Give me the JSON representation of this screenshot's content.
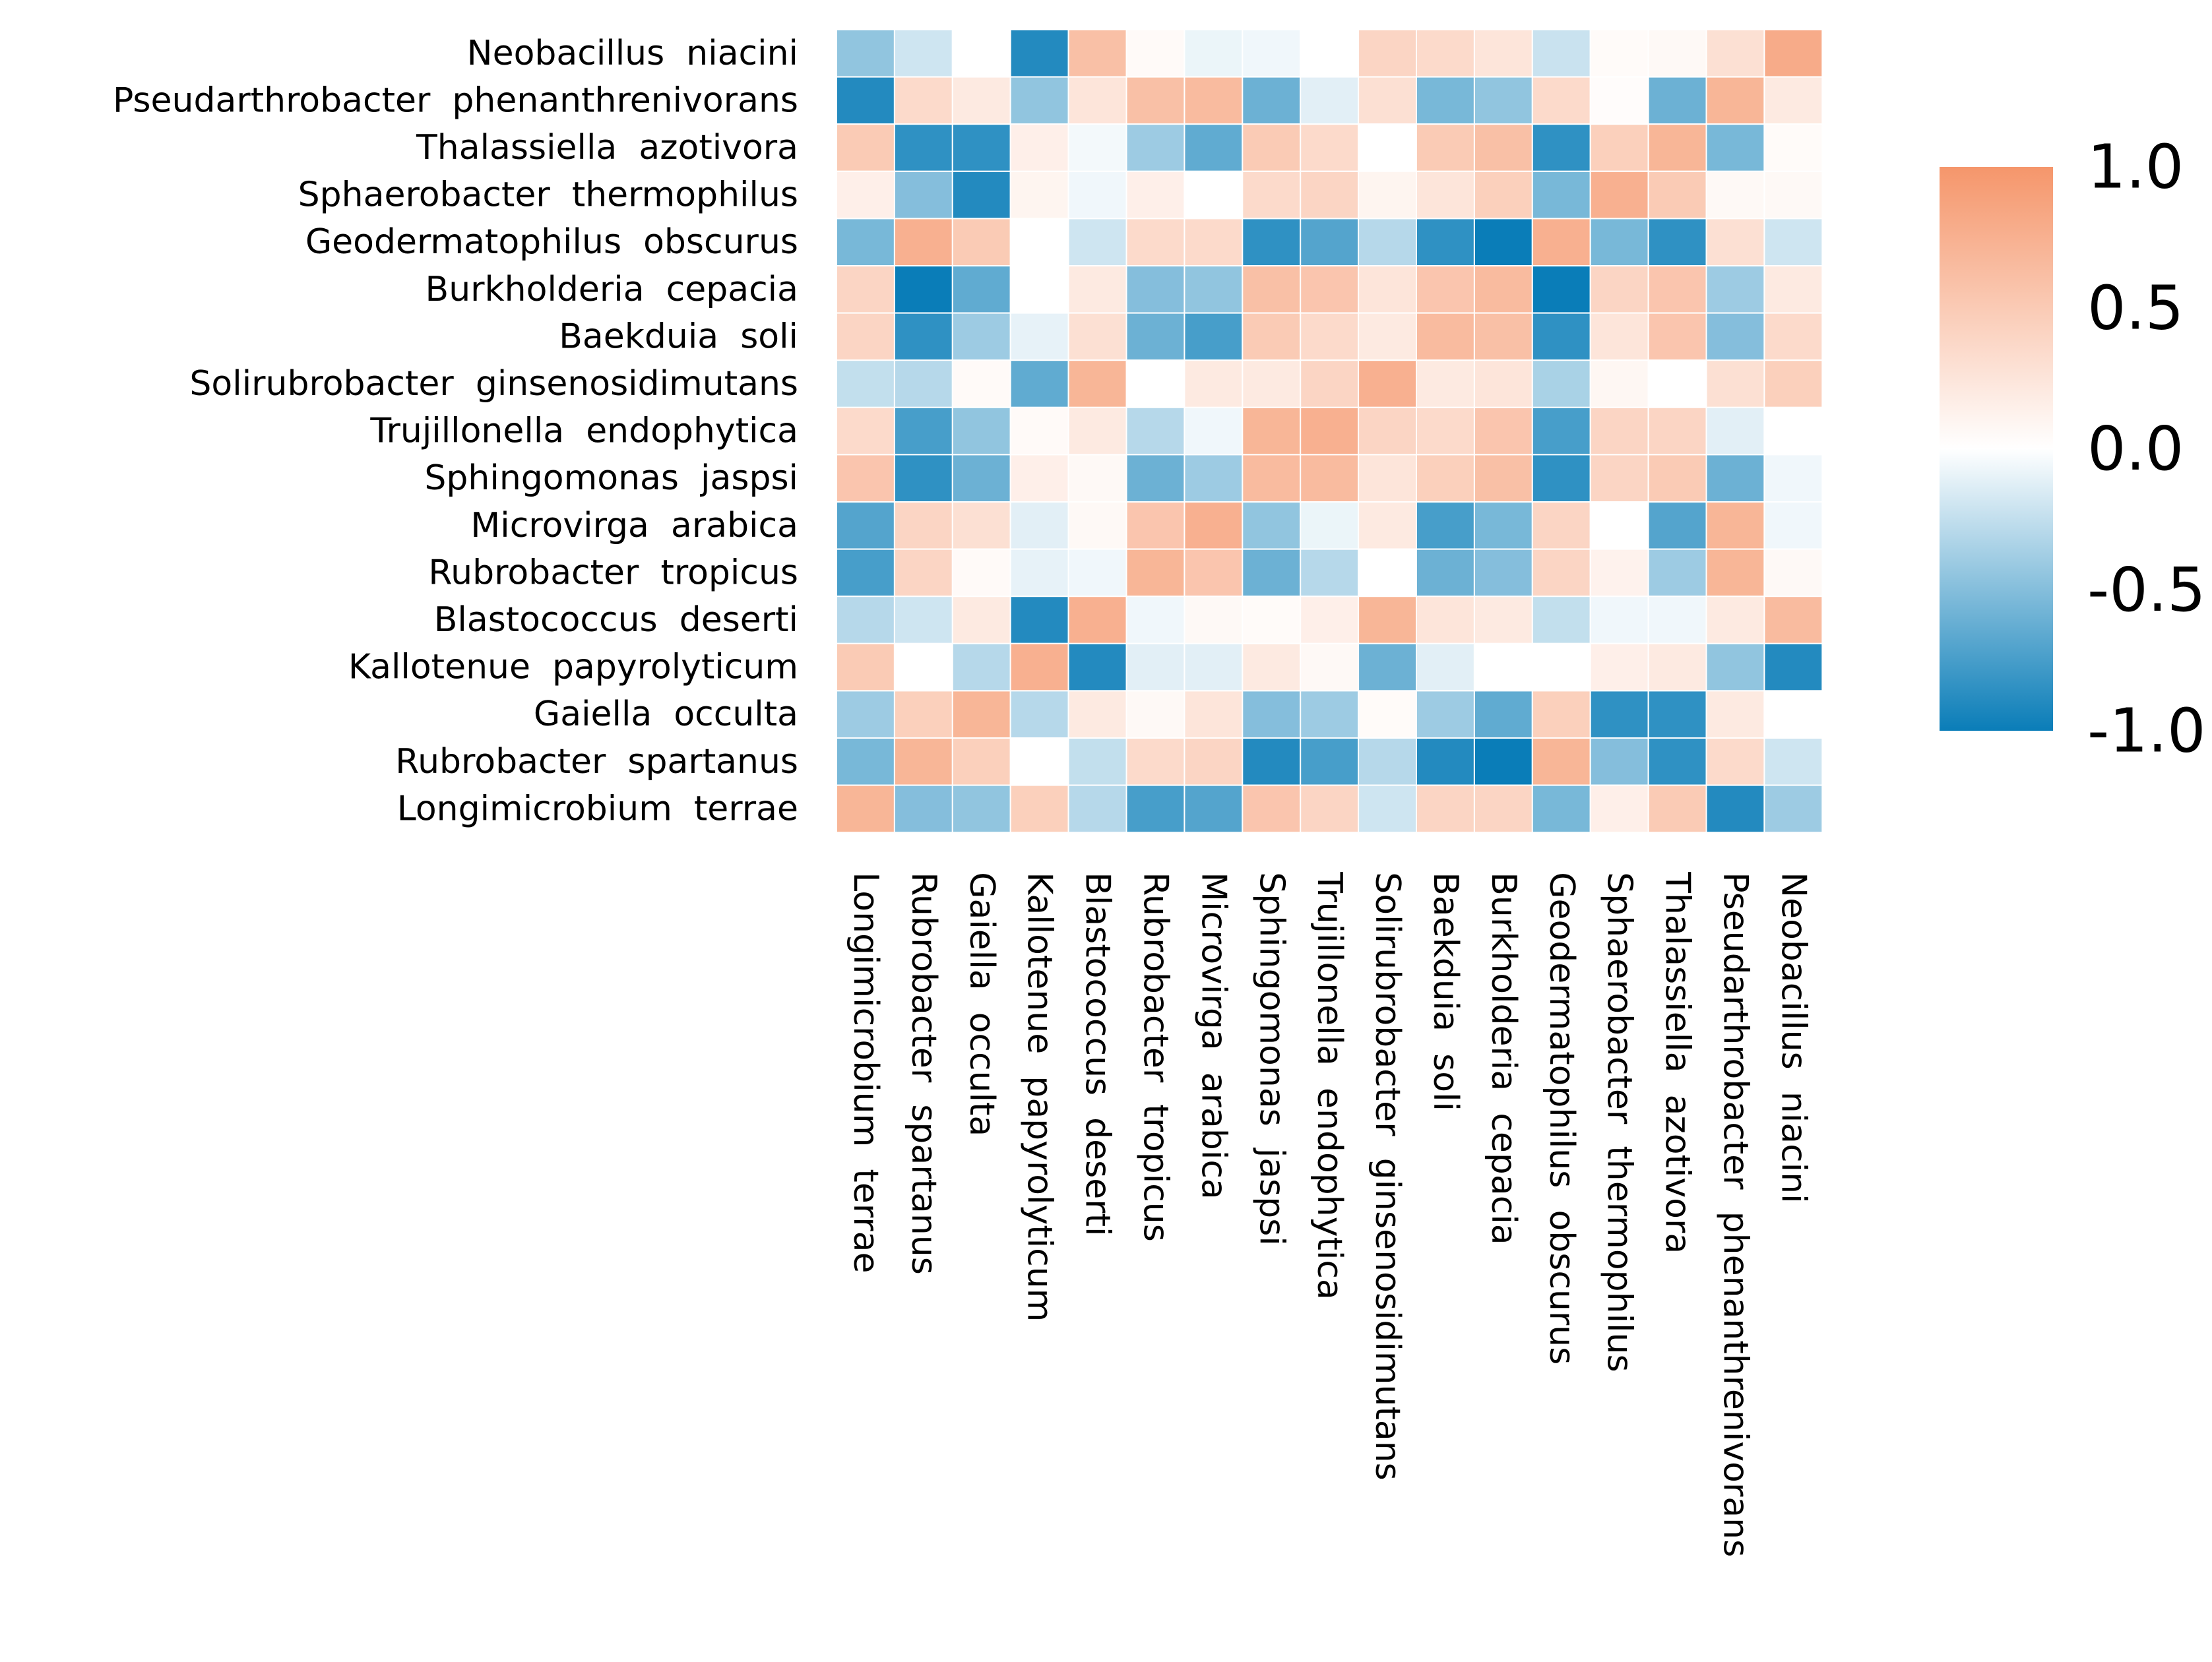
{
  "chart_data": {
    "type": "heatmap",
    "title": "",
    "row_labels": [
      "Neobacillus  niacini",
      "Pseudarthrobacter  phenanthrenivorans",
      "Thalassiella  azotivora",
      "Sphaerobacter  thermophilus",
      "Geodermatophilus  obscurus",
      "Burkholderia  cepacia",
      "Baekduia  soli",
      "Solirubrobacter  ginsenosidimutans",
      "Trujillonella  endophytica",
      "Sphingomonas  jaspsi",
      "Microvirga  arabica",
      "Rubrobacter  tropicus",
      "Blastococcus  deserti",
      "Kallotenue  papyrolyticum",
      "Gaiella  occulta",
      "Rubrobacter  spartanus",
      "Longimicrobium  terrae"
    ],
    "column_labels": [
      "Longimicrobium  terrae",
      "Rubrobacter  spartanus",
      "Gaiella  occulta",
      "Kallotenue  papyrolyticum",
      "Blastococcus  deserti",
      "Rubrobacter  tropicus",
      "Microvirga  arabica",
      "Sphingomonas  jaspsi",
      "Trujillonella  endophytica",
      "Solirubrobacter  ginsenosidimutans",
      "Baekduia  soli",
      "Burkholderia  cepacia",
      "Geodermatophilus  obscurus",
      "Sphaerobacter  thermophilus",
      "Thalassiella  azotivora",
      "Pseudarthrobacter  phenanthrenivorans",
      "Neobacillus  niacini"
    ],
    "values": [
      [
        -0.45,
        -0.2,
        0.0,
        -0.9,
        0.6,
        0.05,
        -0.08,
        -0.06,
        0.0,
        0.4,
        0.35,
        0.25,
        -0.22,
        0.04,
        0.06,
        0.3,
        0.8
      ],
      [
        -0.9,
        0.35,
        0.2,
        -0.45,
        0.25,
        0.6,
        0.65,
        -0.6,
        -0.12,
        0.3,
        -0.55,
        -0.45,
        0.35,
        0.03,
        -0.6,
        0.7,
        0.2
      ],
      [
        0.5,
        -0.85,
        -0.85,
        0.15,
        -0.05,
        -0.4,
        -0.65,
        0.5,
        0.35,
        0.0,
        0.5,
        0.6,
        -0.85,
        0.45,
        0.7,
        -0.55,
        0.04
      ],
      [
        0.15,
        -0.5,
        -0.9,
        0.1,
        -0.06,
        0.15,
        0.0,
        0.35,
        0.4,
        0.1,
        0.25,
        0.45,
        -0.55,
        0.75,
        0.5,
        0.06,
        0.06
      ],
      [
        -0.55,
        0.75,
        0.5,
        0.0,
        -0.2,
        0.35,
        0.35,
        -0.85,
        -0.7,
        -0.3,
        -0.85,
        -1.0,
        0.75,
        -0.55,
        -0.85,
        0.3,
        -0.2
      ],
      [
        0.4,
        -1.0,
        -0.65,
        0.0,
        0.2,
        -0.5,
        -0.45,
        0.6,
        0.55,
        0.25,
        0.55,
        0.65,
        -1.0,
        0.4,
        0.55,
        -0.4,
        0.2
      ],
      [
        0.4,
        -0.85,
        -0.4,
        -0.1,
        0.3,
        -0.6,
        -0.75,
        0.5,
        0.35,
        0.2,
        0.65,
        0.6,
        -0.85,
        0.25,
        0.55,
        -0.5,
        0.35
      ],
      [
        -0.25,
        -0.3,
        0.05,
        -0.65,
        0.7,
        0.0,
        0.2,
        0.2,
        0.4,
        0.75,
        0.2,
        0.25,
        -0.35,
        0.08,
        0.0,
        0.3,
        0.45
      ],
      [
        0.35,
        -0.75,
        -0.45,
        0.05,
        0.2,
        -0.3,
        -0.06,
        0.7,
        0.75,
        0.4,
        0.35,
        0.55,
        -0.75,
        0.4,
        0.4,
        -0.12,
        0.0
      ],
      [
        0.55,
        -0.85,
        -0.6,
        0.15,
        0.06,
        -0.6,
        -0.4,
        0.65,
        0.65,
        0.25,
        0.45,
        0.6,
        -0.85,
        0.4,
        0.5,
        -0.6,
        -0.06
      ],
      [
        -0.7,
        0.4,
        0.3,
        -0.12,
        0.06,
        0.55,
        0.75,
        -0.45,
        -0.08,
        0.2,
        -0.75,
        -0.55,
        0.4,
        0.0,
        -0.7,
        0.7,
        -0.06
      ],
      [
        -0.75,
        0.4,
        0.05,
        -0.1,
        -0.06,
        0.7,
        0.55,
        -0.6,
        -0.3,
        0.0,
        -0.6,
        -0.5,
        0.4,
        0.12,
        -0.4,
        0.7,
        0.06
      ],
      [
        -0.3,
        -0.2,
        0.2,
        -0.9,
        0.75,
        -0.06,
        0.06,
        0.04,
        0.15,
        0.7,
        0.25,
        0.2,
        -0.25,
        -0.06,
        -0.06,
        0.2,
        0.65
      ],
      [
        0.5,
        0.0,
        -0.3,
        0.75,
        -0.9,
        -0.12,
        -0.12,
        0.2,
        0.06,
        -0.6,
        -0.12,
        0.0,
        0.0,
        0.15,
        0.2,
        -0.45,
        -0.9
      ],
      [
        -0.4,
        0.45,
        0.7,
        -0.3,
        0.2,
        0.06,
        0.25,
        -0.5,
        -0.4,
        0.04,
        -0.4,
        -0.65,
        0.45,
        -0.85,
        -0.85,
        0.2,
        0.0
      ],
      [
        -0.55,
        0.7,
        0.45,
        0.0,
        -0.25,
        0.35,
        0.4,
        -0.9,
        -0.75,
        -0.3,
        -0.9,
        -1.0,
        0.7,
        -0.5,
        -0.85,
        0.35,
        -0.2
      ],
      [
        0.7,
        -0.5,
        -0.45,
        0.45,
        -0.3,
        -0.75,
        -0.7,
        0.55,
        0.4,
        -0.2,
        0.4,
        0.4,
        -0.55,
        0.15,
        0.5,
        -0.9,
        -0.4
      ]
    ],
    "colorbar": {
      "min": -1.0,
      "max": 1.0,
      "ticks": [
        "1.0",
        "0.5",
        "0.0",
        "-0.5",
        "-1.0"
      ],
      "tick_values": [
        1.0,
        0.5,
        0.0,
        -0.5,
        -1.0
      ],
      "low_color": "#0a7db8",
      "mid_color": "#ffffff",
      "high_color": "#f5966b"
    }
  }
}
